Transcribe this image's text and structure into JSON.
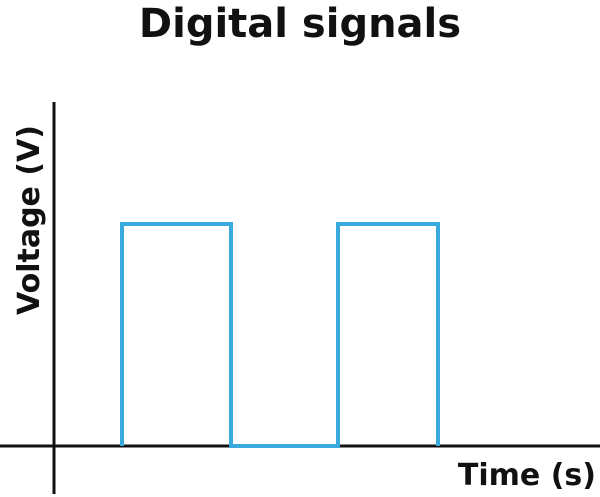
{
  "diagram": {
    "title": "Digital signals",
    "x_axis_label": "Time (s)",
    "y_axis_label": "Voltage (V)",
    "signal_color": "#3aa9de",
    "axis_color": "#111111",
    "signal_type": "square wave",
    "levels": [
      "low",
      "high",
      "low",
      "high",
      "low"
    ]
  }
}
